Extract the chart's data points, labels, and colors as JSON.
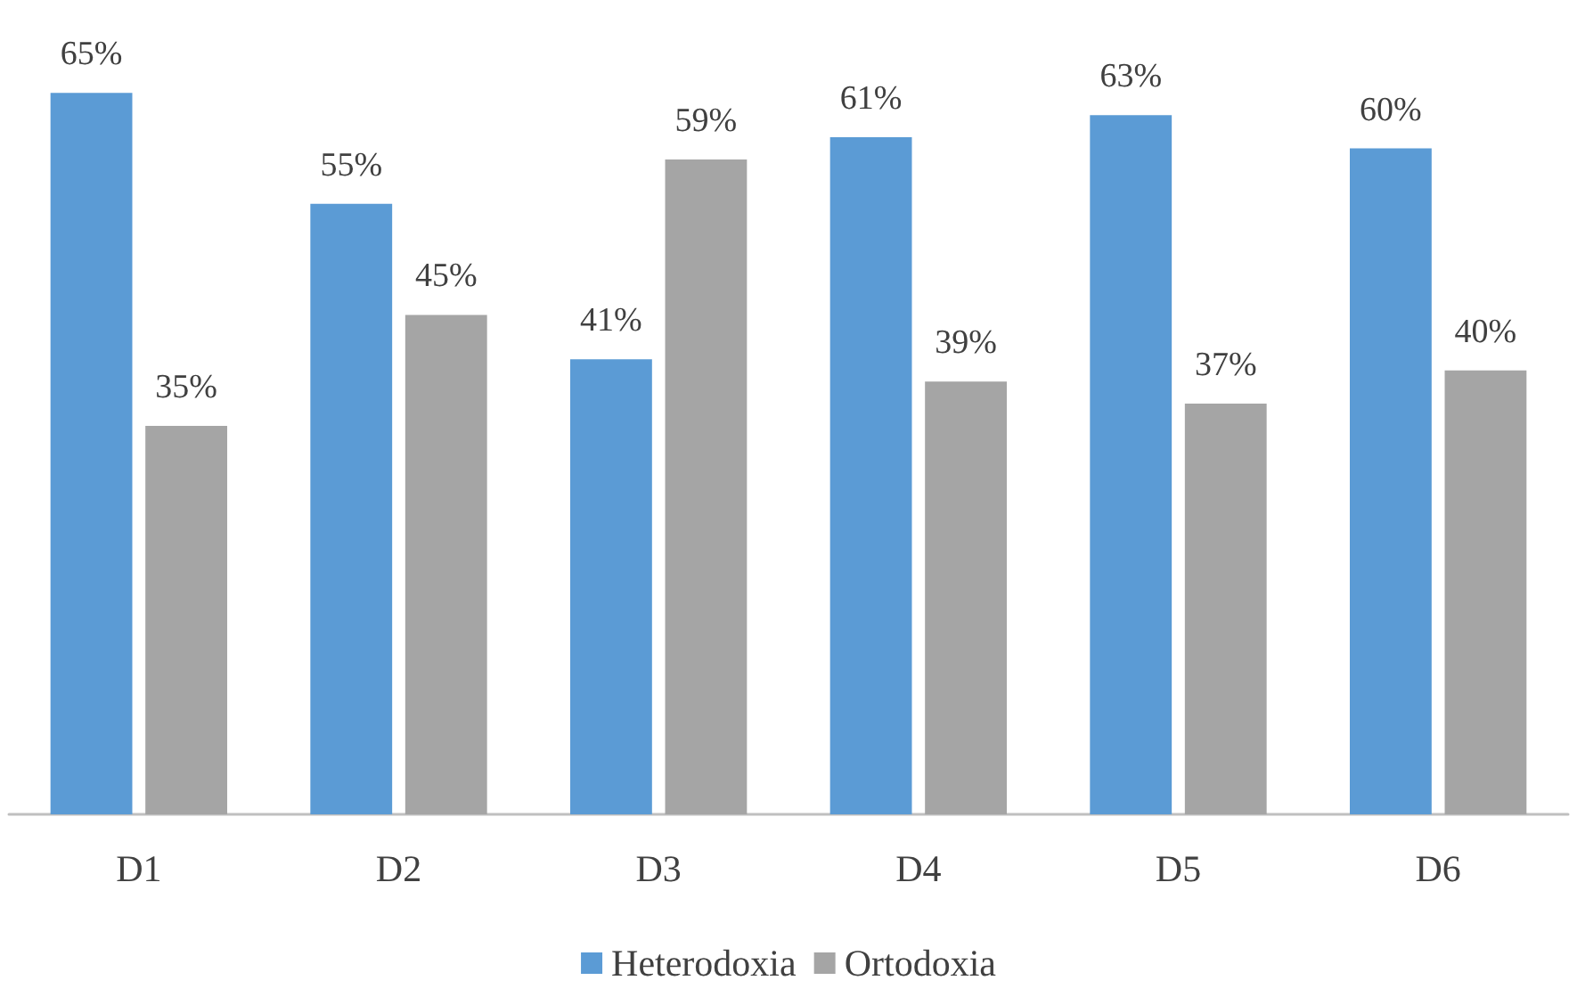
{
  "chart_data": {
    "type": "bar",
    "categories": [
      "D1",
      "D2",
      "D3",
      "D4",
      "D5",
      "D6"
    ],
    "series": [
      {
        "name": "Heterodoxia",
        "color": "#5b9bd5",
        "values": [
          65,
          55,
          41,
          61,
          63,
          60
        ],
        "value_labels": [
          "65%",
          "55%",
          "41%",
          "61%",
          "63%",
          "60%"
        ]
      },
      {
        "name": "Ortodoxia",
        "color": "#a5a5a5",
        "values": [
          35,
          45,
          59,
          39,
          37,
          40
        ],
        "value_labels": [
          "35%",
          "45%",
          "59%",
          "39%",
          "37%",
          "40%"
        ]
      }
    ],
    "legend": "bottom"
  }
}
